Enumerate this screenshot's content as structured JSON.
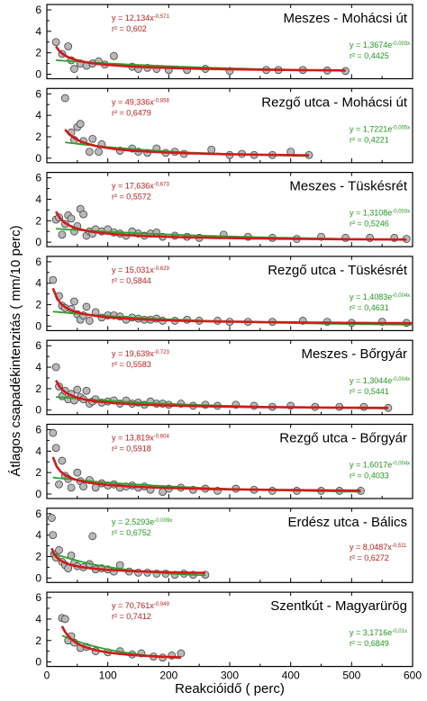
{
  "chart_data": {
    "type": "scatter",
    "xlabel": "Reakcióidő ( perc)",
    "ylabel": "Átlagos csapadékintenzitás ( mm/10 perc)",
    "xlim": [
      0,
      600
    ],
    "ylim": [
      0,
      6
    ],
    "xticks": [
      0,
      100,
      200,
      300,
      400,
      500,
      600
    ],
    "yticks": [
      0,
      2,
      4,
      6
    ],
    "panels": [
      {
        "title": "Meszes - Mohácsi út",
        "power_eq": "y = 12,134x",
        "power_exp": "-0,571",
        "power_r2": "r² = 0,602",
        "exp_eq": "y = 1,3674e",
        "exp_exp": "-0,003x",
        "exp_r2": "r² = 0,4425",
        "power_fit": {
          "a": 12.134,
          "b": -0.571,
          "xmin": 15,
          "xmax": 490
        },
        "exp_fit": {
          "a": 1.3674,
          "k": -0.003,
          "xmin": 15,
          "xmax": 490
        },
        "points": [
          [
            15,
            3.0
          ],
          [
            25,
            1.9
          ],
          [
            35,
            2.6
          ],
          [
            40,
            1.3
          ],
          [
            45,
            0.5
          ],
          [
            55,
            1.0
          ],
          [
            65,
            0.8
          ],
          [
            75,
            1.0
          ],
          [
            85,
            1.2
          ],
          [
            95,
            0.9
          ],
          [
            110,
            1.7
          ],
          [
            140,
            0.7
          ],
          [
            150,
            0.5
          ],
          [
            165,
            0.6
          ],
          [
            180,
            0.5
          ],
          [
            200,
            0.4
          ],
          [
            230,
            0.4
          ],
          [
            260,
            0.5
          ],
          [
            300,
            0.3
          ],
          [
            360,
            0.4
          ],
          [
            380,
            0.4
          ],
          [
            420,
            0.4
          ],
          [
            460,
            0.35
          ],
          [
            490,
            0.3
          ]
        ]
      },
      {
        "title": "Rezgő utca - Mohácsi út",
        "power_eq": "y = 49,336x",
        "power_exp": "-0,858",
        "power_r2": "r² = 0,6479",
        "exp_eq": "y = 1,7221e",
        "exp_exp": "-0,005x",
        "exp_r2": "r² = 0,4221",
        "power_fit": {
          "a": 49.336,
          "b": -0.858,
          "xmin": 30,
          "xmax": 430
        },
        "exp_fit": {
          "a": 1.7221,
          "k": -0.005,
          "xmin": 30,
          "xmax": 430
        },
        "points": [
          [
            30,
            5.6
          ],
          [
            40,
            2.4
          ],
          [
            45,
            1.7
          ],
          [
            50,
            2.9
          ],
          [
            55,
            3.2
          ],
          [
            60,
            1.6
          ],
          [
            70,
            0.6
          ],
          [
            75,
            1.8
          ],
          [
            85,
            0.6
          ],
          [
            90,
            1.3
          ],
          [
            120,
            0.7
          ],
          [
            140,
            0.9
          ],
          [
            150,
            0.6
          ],
          [
            165,
            0.5
          ],
          [
            180,
            0.9
          ],
          [
            195,
            0.5
          ],
          [
            210,
            0.6
          ],
          [
            225,
            0.4
          ],
          [
            270,
            0.8
          ],
          [
            300,
            0.3
          ],
          [
            320,
            0.4
          ],
          [
            340,
            0.3
          ],
          [
            370,
            0.3
          ],
          [
            400,
            0.6
          ],
          [
            430,
            0.3
          ]
        ]
      },
      {
        "title": "Meszes - Tüskésrét",
        "power_eq": "y = 17,636x",
        "power_exp": "-0,673",
        "power_r2": "r² = 0,5572",
        "exp_eq": "y = 1,3108e",
        "exp_exp": "-0,003x",
        "exp_r2": "r² = 0,5246",
        "power_fit": {
          "a": 17.636,
          "b": -0.673,
          "xmin": 15,
          "xmax": 590
        },
        "exp_fit": {
          "a": 1.3108,
          "k": -0.003,
          "xmin": 15,
          "xmax": 590
        },
        "points": [
          [
            15,
            2.1
          ],
          [
            20,
            2.3
          ],
          [
            25,
            0.7
          ],
          [
            30,
            1.7
          ],
          [
            35,
            2.5
          ],
          [
            40,
            2.2
          ],
          [
            45,
            1.0
          ],
          [
            50,
            1.5
          ],
          [
            55,
            3.1
          ],
          [
            60,
            2.6
          ],
          [
            65,
            0.6
          ],
          [
            70,
            1.0
          ],
          [
            75,
            0.8
          ],
          [
            80,
            1.2
          ],
          [
            90,
            1.0
          ],
          [
            100,
            1.2
          ],
          [
            110,
            0.9
          ],
          [
            120,
            0.8
          ],
          [
            130,
            0.6
          ],
          [
            140,
            1.0
          ],
          [
            150,
            0.8
          ],
          [
            160,
            0.6
          ],
          [
            170,
            0.8
          ],
          [
            180,
            0.9
          ],
          [
            190,
            0.5
          ],
          [
            210,
            0.6
          ],
          [
            230,
            0.5
          ],
          [
            250,
            0.4
          ],
          [
            290,
            0.7
          ],
          [
            330,
            0.5
          ],
          [
            370,
            0.4
          ],
          [
            410,
            0.3
          ],
          [
            450,
            0.5
          ],
          [
            490,
            0.4
          ],
          [
            530,
            0.4
          ],
          [
            570,
            0.4
          ],
          [
            590,
            0.3
          ]
        ]
      },
      {
        "title": "Rezgő utca - Tüskésrét",
        "power_eq": "y = 15,031x",
        "power_exp": "-0,629",
        "power_r2": "r² = 0,5844",
        "exp_eq": "y = 1,4083e",
        "exp_exp": "-0,004x",
        "exp_r2": "r² = 0,4631",
        "power_fit": {
          "a": 15.031,
          "b": -0.629,
          "xmin": 10,
          "xmax": 600
        },
        "exp_fit": {
          "a": 1.4083,
          "k": -0.004,
          "xmin": 10,
          "xmax": 600
        },
        "points": [
          [
            10,
            4.3
          ],
          [
            20,
            2.8
          ],
          [
            25,
            1.9
          ],
          [
            30,
            1.7
          ],
          [
            40,
            1.6
          ],
          [
            45,
            2.3
          ],
          [
            50,
            1.1
          ],
          [
            55,
            0.6
          ],
          [
            60,
            1.0
          ],
          [
            65,
            1.8
          ],
          [
            70,
            0.5
          ],
          [
            80,
            1.3
          ],
          [
            90,
            0.8
          ],
          [
            100,
            1.0
          ],
          [
            110,
            1.0
          ],
          [
            120,
            0.9
          ],
          [
            130,
            0.6
          ],
          [
            140,
            0.8
          ],
          [
            150,
            0.7
          ],
          [
            160,
            0.6
          ],
          [
            170,
            0.6
          ],
          [
            180,
            0.7
          ],
          [
            190,
            0.5
          ],
          [
            210,
            0.5
          ],
          [
            230,
            0.6
          ],
          [
            250,
            0.5
          ],
          [
            280,
            0.5
          ],
          [
            300,
            0.4
          ],
          [
            330,
            0.4
          ],
          [
            370,
            0.4
          ],
          [
            420,
            0.5
          ],
          [
            460,
            0.4
          ],
          [
            500,
            0.3
          ],
          [
            550,
            0.4
          ],
          [
            590,
            0.3
          ]
        ]
      },
      {
        "title": "Meszes - Bőrgyár",
        "power_eq": "y = 19,639x",
        "power_exp": "-0,723",
        "power_r2": "r² = 0,5583",
        "exp_eq": "y = 1,3044e",
        "exp_exp": "-0,004x",
        "exp_r2": "r² = 0,5441",
        "power_fit": {
          "a": 19.639,
          "b": -0.723,
          "xmin": 15,
          "xmax": 560
        },
        "exp_fit": {
          "a": 1.3044,
          "k": -0.004,
          "xmin": 15,
          "xmax": 560
        },
        "points": [
          [
            15,
            4.0
          ],
          [
            20,
            2.2
          ],
          [
            25,
            1.3
          ],
          [
            30,
            1.8
          ],
          [
            35,
            1.0
          ],
          [
            40,
            1.5
          ],
          [
            45,
            0.9
          ],
          [
            50,
            1.9
          ],
          [
            55,
            1.2
          ],
          [
            60,
            1.0
          ],
          [
            65,
            1.8
          ],
          [
            70,
            0.6
          ],
          [
            75,
            0.8
          ],
          [
            80,
            1.0
          ],
          [
            90,
            0.7
          ],
          [
            100,
            0.8
          ],
          [
            110,
            0.9
          ],
          [
            120,
            0.6
          ],
          [
            130,
            0.9
          ],
          [
            140,
            0.6
          ],
          [
            150,
            0.7
          ],
          [
            160,
            0.5
          ],
          [
            170,
            0.8
          ],
          [
            180,
            0.6
          ],
          [
            190,
            0.6
          ],
          [
            200,
            0.5
          ],
          [
            220,
            0.6
          ],
          [
            240,
            0.4
          ],
          [
            260,
            0.5
          ],
          [
            280,
            0.4
          ],
          [
            310,
            0.5
          ],
          [
            340,
            0.4
          ],
          [
            370,
            0.3
          ],
          [
            400,
            0.4
          ],
          [
            440,
            0.3
          ],
          [
            480,
            0.3
          ],
          [
            520,
            0.3
          ],
          [
            560,
            0.2
          ]
        ]
      },
      {
        "title": "Rezgő utca - Bőrgyár",
        "power_eq": "y = 13,819x",
        "power_exp": "-0,604",
        "power_r2": "r² = 0,5918",
        "exp_eq": "y = 1,6017e",
        "exp_exp": "-0,004x",
        "exp_r2": "r² = 0,4033",
        "power_fit": {
          "a": 13.819,
          "b": -0.604,
          "xmin": 10,
          "xmax": 515
        },
        "exp_fit": {
          "a": 1.6017,
          "k": -0.004,
          "xmin": 10,
          "xmax": 515
        },
        "points": [
          [
            10,
            5.7
          ],
          [
            15,
            4.3
          ],
          [
            20,
            0.9
          ],
          [
            25,
            3.1
          ],
          [
            30,
            1.7
          ],
          [
            35,
            1.4
          ],
          [
            40,
            0.6
          ],
          [
            50,
            2.0
          ],
          [
            55,
            1.2
          ],
          [
            60,
            0.7
          ],
          [
            70,
            1.3
          ],
          [
            80,
            0.6
          ],
          [
            90,
            1.0
          ],
          [
            100,
            0.8
          ],
          [
            110,
            0.9
          ],
          [
            120,
            0.6
          ],
          [
            130,
            0.7
          ],
          [
            140,
            0.8
          ],
          [
            150,
            0.6
          ],
          [
            160,
            0.7
          ],
          [
            170,
            0.4
          ],
          [
            190,
            0.2
          ],
          [
            200,
            0.5
          ],
          [
            220,
            0.6
          ],
          [
            240,
            0.4
          ],
          [
            260,
            0.5
          ],
          [
            280,
            0.3
          ],
          [
            310,
            0.5
          ],
          [
            340,
            0.4
          ],
          [
            370,
            0.3
          ],
          [
            410,
            0.3
          ],
          [
            450,
            0.3
          ],
          [
            480,
            0.3
          ],
          [
            515,
            0.3
          ]
        ]
      },
      {
        "title": "Erdész utca - Bálics",
        "power_eq": "y = 8,0487x",
        "power_exp": "-0,511",
        "power_r2": "r² = 0,6272",
        "exp_eq": "y = 2,5293e",
        "exp_exp": "-0,009x",
        "exp_r2": "r² = 0,6752",
        "power_fit": {
          "a": 8.0487,
          "b": -0.511,
          "xmin": 8,
          "xmax": 260
        },
        "exp_fit": {
          "a": 2.5293,
          "k": -0.009,
          "xmin": 8,
          "xmax": 260
        },
        "points": [
          [
            8,
            5.6
          ],
          [
            10,
            4.0
          ],
          [
            12,
            2.2
          ],
          [
            15,
            1.9
          ],
          [
            20,
            2.6
          ],
          [
            25,
            1.5
          ],
          [
            30,
            1.2
          ],
          [
            35,
            0.9
          ],
          [
            40,
            2.1
          ],
          [
            45,
            1.4
          ],
          [
            50,
            1.1
          ],
          [
            60,
            1.0
          ],
          [
            70,
            1.3
          ],
          [
            75,
            3.9
          ],
          [
            80,
            0.8
          ],
          [
            90,
            0.9
          ],
          [
            100,
            0.8
          ],
          [
            110,
            0.6
          ],
          [
            120,
            1.2
          ],
          [
            135,
            0.6
          ],
          [
            150,
            0.5
          ],
          [
            165,
            0.5
          ],
          [
            180,
            0.4
          ],
          [
            195,
            0.4
          ],
          [
            210,
            0.3
          ],
          [
            225,
            0.4
          ],
          [
            240,
            0.3
          ],
          [
            260,
            0.3
          ]
        ]
      },
      {
        "title": "Szentkút - Magyarürög",
        "power_eq": "y = 70,761x",
        "power_exp": "-0,949",
        "power_r2": "r² = 0,7412",
        "exp_eq": "y = 3,1716e",
        "exp_exp": "-0,01x",
        "exp_r2": "r² = 0,6849",
        "power_fit": {
          "a": 70.761,
          "b": -0.949,
          "xmin": 25,
          "xmax": 220
        },
        "exp_fit": {
          "a": 3.1716,
          "k": -0.01,
          "xmin": 25,
          "xmax": 220
        },
        "points": [
          [
            25,
            4.1
          ],
          [
            30,
            4.0
          ],
          [
            35,
            2.0
          ],
          [
            40,
            2.4
          ],
          [
            45,
            1.8
          ],
          [
            55,
            1.3
          ],
          [
            65,
            1.4
          ],
          [
            80,
            1.0
          ],
          [
            100,
            0.9
          ],
          [
            120,
            1.0
          ],
          [
            140,
            0.7
          ],
          [
            155,
            0.8
          ],
          [
            175,
            0.5
          ],
          [
            190,
            0.4
          ],
          [
            205,
            0.6
          ],
          [
            220,
            0.8
          ]
        ]
      }
    ]
  }
}
